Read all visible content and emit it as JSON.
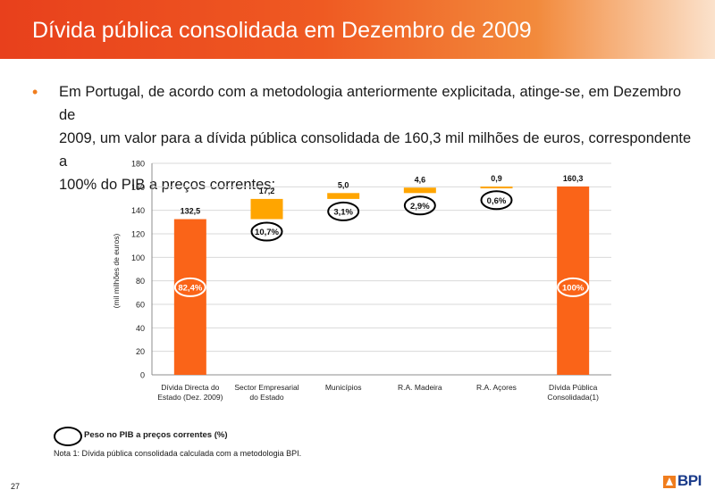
{
  "header": {
    "title": "Dívida pública consolidada em Dezembro de 2009"
  },
  "bullet": {
    "marker": "•",
    "line1": "Em Portugal, de acordo com a metodologia anteriormente explicitada, atinge-se, em Dezembro de",
    "line2": "2009, um valor para a dívida pública consolidada de 160,3 mil milhões de euros, correspondente a",
    "line3": "100% do PIB a preços correntes:"
  },
  "chart_data": {
    "type": "bar",
    "subtype": "waterfall",
    "ylabel": "(mil milhões de euros)",
    "ylim": [
      0,
      180
    ],
    "yticks": [
      0,
      20,
      40,
      60,
      80,
      100,
      120,
      140,
      160,
      180
    ],
    "grid": true,
    "categories": [
      [
        "Dívida Directa do",
        "Estado (Dez. 2009)"
      ],
      [
        "Sector Empresarial",
        "do Estado"
      ],
      [
        "Municípios"
      ],
      [
        "R.A. Madeira"
      ],
      [
        "R.A. Açores"
      ],
      [
        "Dívida Pública",
        "Consolidada(1)"
      ]
    ],
    "bars": [
      {
        "start": 0,
        "end": 132.5,
        "label": "132,5",
        "pib": "82,4%",
        "kind": "total"
      },
      {
        "start": 132.5,
        "end": 149.7,
        "label": "17,2",
        "pib": "10,7%",
        "kind": "step"
      },
      {
        "start": 149.7,
        "end": 154.7,
        "label": "5,0",
        "pib": "3,1%",
        "kind": "step"
      },
      {
        "start": 154.7,
        "end": 159.3,
        "label": "4,6",
        "pib": "2,9%",
        "kind": "step"
      },
      {
        "start": 159.3,
        "end": 160.2,
        "label": "0,9",
        "pib": "0,6%",
        "kind": "step"
      },
      {
        "start": 0,
        "end": 160.3,
        "label": "160,3",
        "pib": "100%",
        "kind": "total"
      }
    ],
    "colors": {
      "total": "#fa6418",
      "step": "#ffa500",
      "grid": "#d9d9d9",
      "axis": "#8c8c8c"
    }
  },
  "legend": {
    "label": "Peso no PIB a preços correntes (%)"
  },
  "note": "Nota 1: Dívida pública consolidada calculada com a metodologia BPI.",
  "page_number": "27",
  "logo": {
    "text": "BPI"
  }
}
